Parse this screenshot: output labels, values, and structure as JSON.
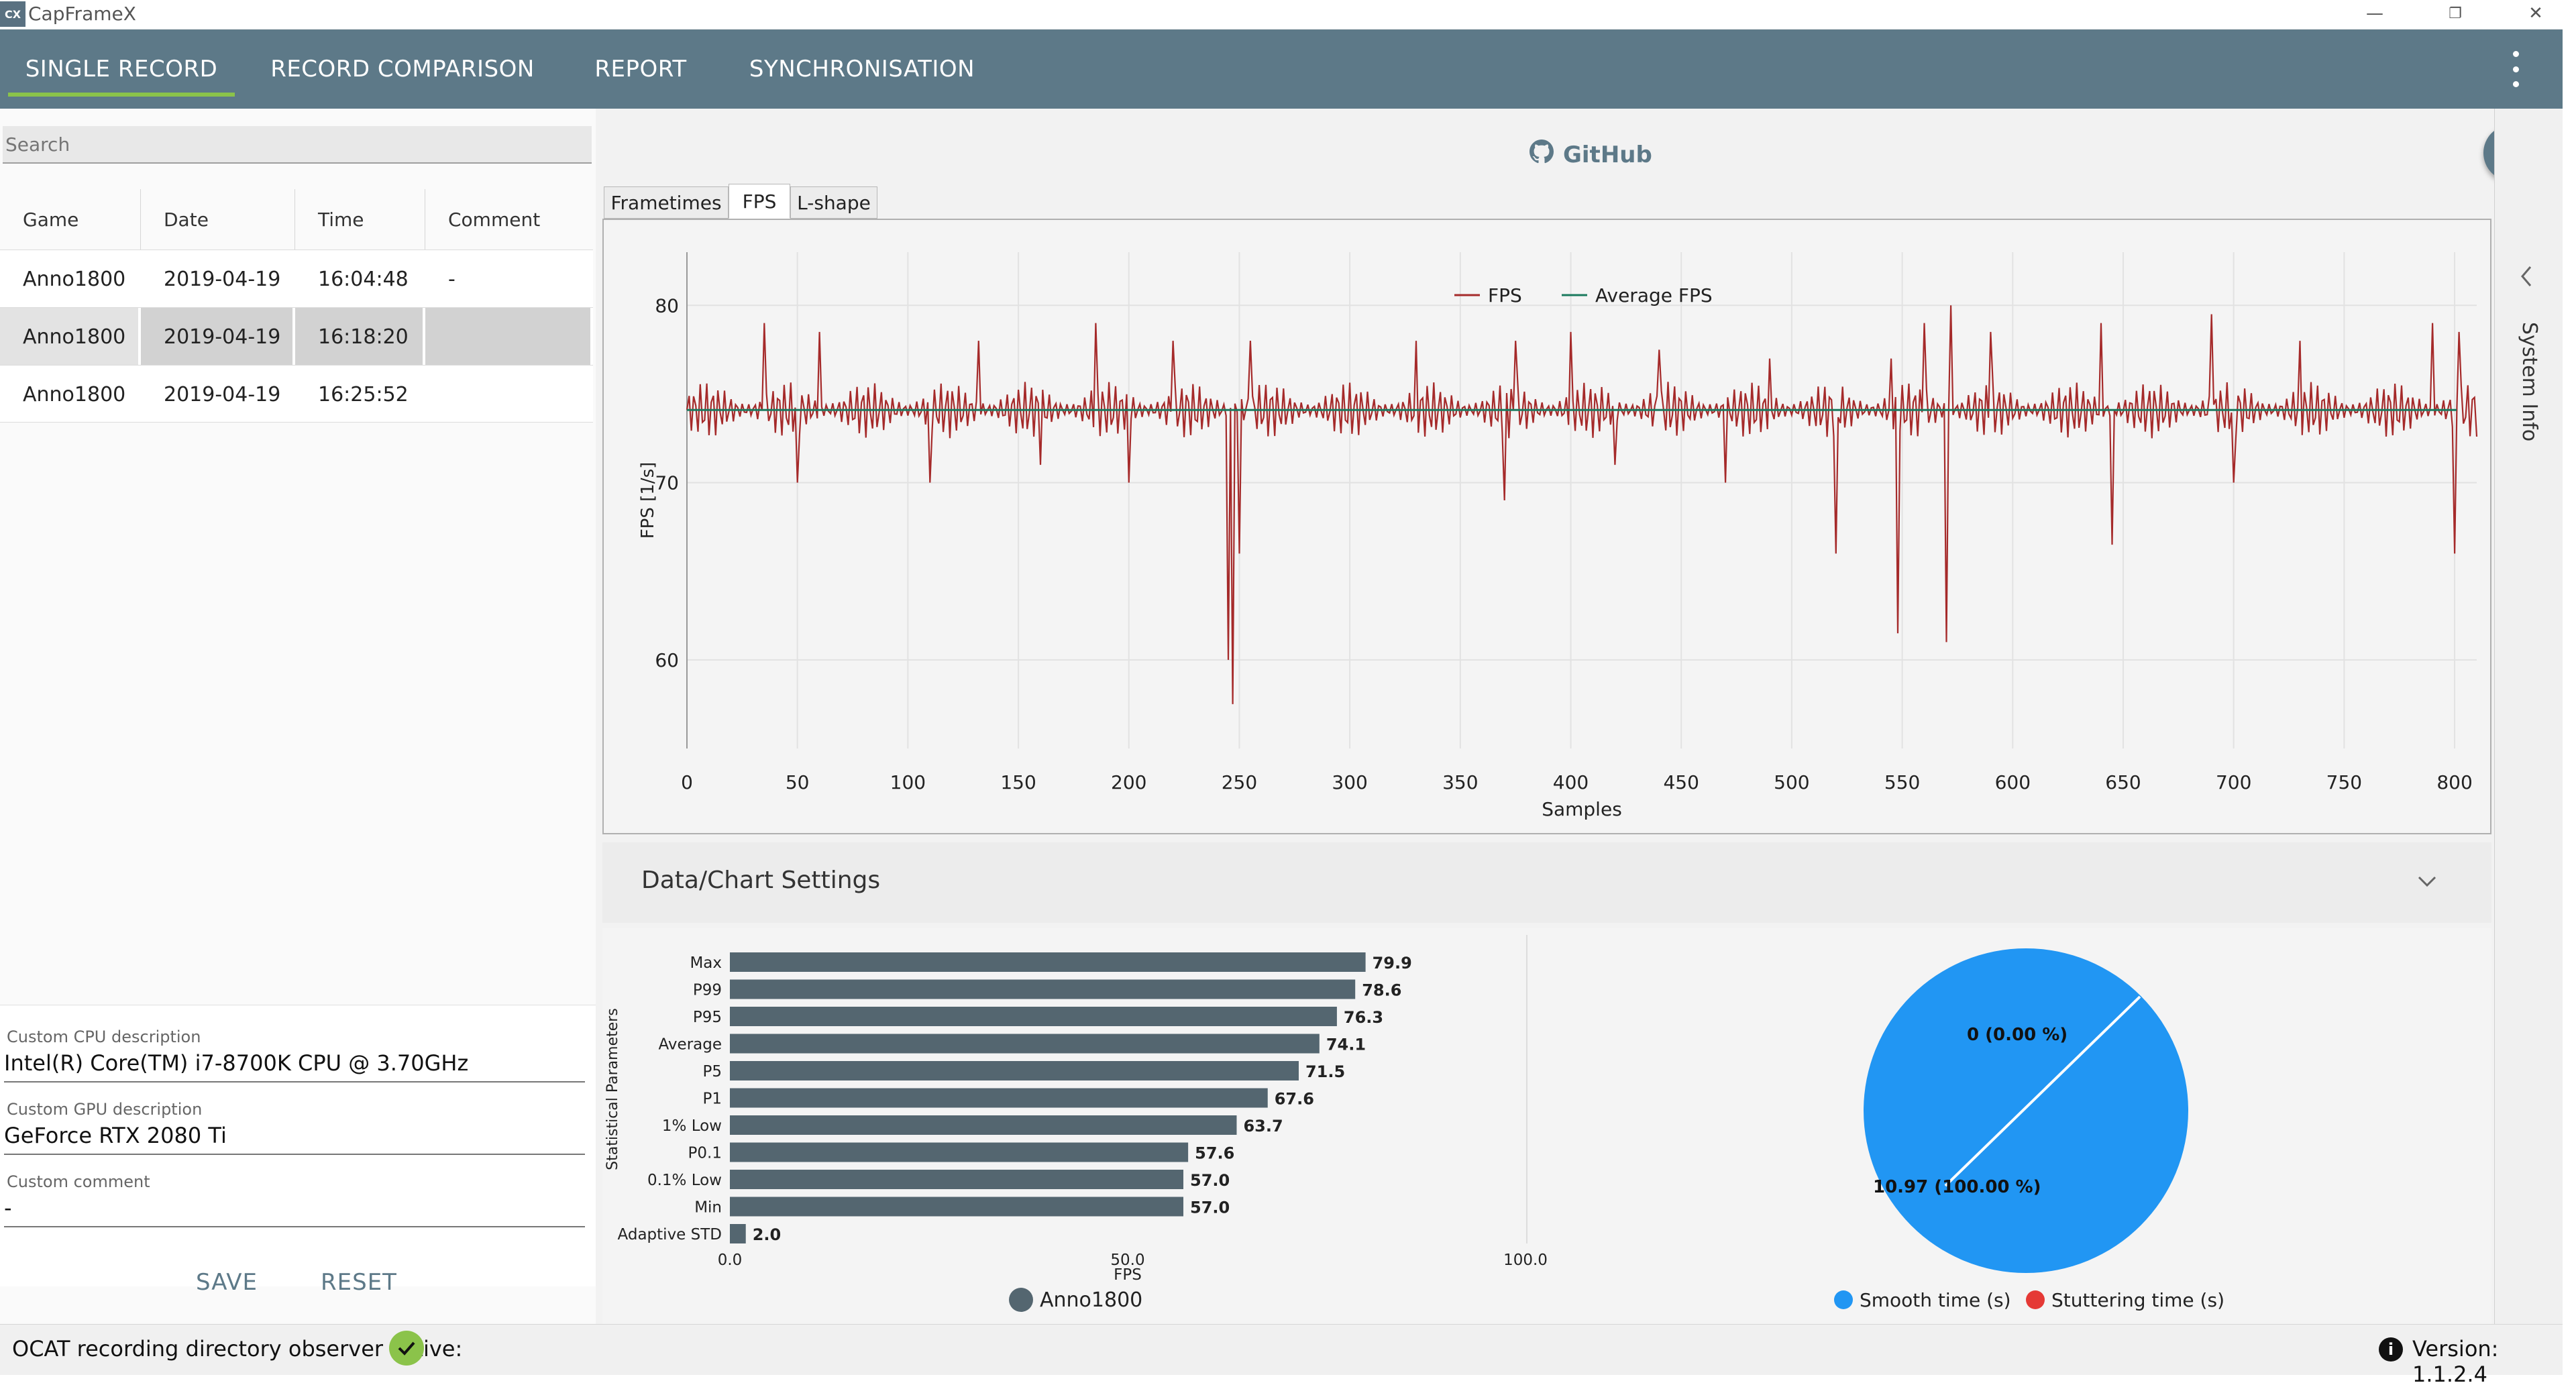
{
  "window": {
    "app_icon_text": "CX",
    "title": "CapFrameX",
    "minimize": "—",
    "restore": "❐",
    "close": "✕"
  },
  "nav": {
    "tabs": [
      {
        "label": "SINGLE RECORD",
        "active": true
      },
      {
        "label": "RECORD COMPARISON"
      },
      {
        "label": "REPORT"
      },
      {
        "label": "SYNCHRONISATION"
      }
    ],
    "accent": "#8bc34a",
    "bar_color": "#5d7988"
  },
  "search": {
    "placeholder": "Search",
    "value": ""
  },
  "records": {
    "headers": [
      "Game",
      "Date",
      "Time",
      "Comment"
    ],
    "rows": [
      [
        "Anno1800",
        "2019-04-19",
        "16:04:48",
        "-"
      ],
      [
        "Anno1800",
        "2019-04-19",
        "16:18:20",
        ""
      ],
      [
        "Anno1800",
        "2019-04-19",
        "16:25:52",
        ""
      ]
    ],
    "selected_row": 1
  },
  "descriptions": {
    "cpu_label": "Custom CPU description",
    "cpu_value": "Intel(R) Core(TM) i7-8700K CPU @ 3.70GHz",
    "gpu_label": "Custom GPU description",
    "gpu_value": "GeForce RTX 2080 Ti",
    "comment_label": "Custom comment",
    "comment_value": "-",
    "save": "SAVE",
    "reset": "RESET"
  },
  "github": {
    "label": "GitHub"
  },
  "chart_tabs": [
    {
      "label": "Frametimes"
    },
    {
      "label": "FPS",
      "active": true
    },
    {
      "label": "L-shape"
    }
  ],
  "settings": {
    "label": "Data/Chart Settings"
  },
  "side_panel": {
    "label": "System Info"
  },
  "status": {
    "observer_text": "OCAT recording directory observer active:",
    "version": "Version:  1.1.2.4"
  },
  "chart_data": [
    {
      "type": "line",
      "xlabel": "Samples",
      "ylabel": "FPS [1/s]",
      "xlim": [
        0,
        810
      ],
      "ylim": [
        55,
        83
      ],
      "x_ticks": [
        0,
        50,
        100,
        150,
        200,
        250,
        300,
        350,
        400,
        450,
        500,
        550,
        600,
        650,
        700,
        750,
        800
      ],
      "y_ticks": [
        60,
        70,
        80
      ],
      "grid": true,
      "legend_position": "top-center",
      "series": [
        {
          "name": "FPS",
          "color": "#a52a2a",
          "base": 74.1,
          "amplitude": 1.6,
          "spikes": [
            [
              35,
              79
            ],
            [
              50,
              70
            ],
            [
              60,
              78.5
            ],
            [
              110,
              70
            ],
            [
              132,
              78
            ],
            [
              160,
              71
            ],
            [
              185,
              79
            ],
            [
              200,
              70
            ],
            [
              220,
              78
            ],
            [
              245,
              60
            ],
            [
              247,
              57.5
            ],
            [
              250,
              66
            ],
            [
              255,
              78
            ],
            [
              330,
              78
            ],
            [
              370,
              69
            ],
            [
              375,
              78
            ],
            [
              400,
              78.5
            ],
            [
              420,
              71
            ],
            [
              440,
              77.5
            ],
            [
              470,
              70
            ],
            [
              490,
              77
            ],
            [
              520,
              66
            ],
            [
              545,
              77
            ],
            [
              548,
              61.5
            ],
            [
              560,
              79
            ],
            [
              570,
              61
            ],
            [
              572,
              80
            ],
            [
              590,
              78.5
            ],
            [
              640,
              79
            ],
            [
              645,
              66.5
            ],
            [
              690,
              79.5
            ],
            [
              700,
              70
            ],
            [
              730,
              78
            ],
            [
              790,
              79
            ],
            [
              800,
              66
            ],
            [
              802,
              78.5
            ]
          ]
        },
        {
          "name": "Average FPS",
          "color": "#1a7a5e",
          "value": 74.1
        }
      ]
    },
    {
      "type": "bar",
      "orientation": "horizontal",
      "ylabel": "Statistical Parameters",
      "xlabel": "FPS",
      "xlim": [
        0,
        100
      ],
      "x_ticks": [
        "0.0",
        "50.0",
        "100.0"
      ],
      "categories": [
        "Max",
        "P99",
        "P95",
        "Average",
        "P5",
        "P1",
        "1% Low",
        "P0.1",
        "0.1% Low",
        "Min",
        "Adaptive STD"
      ],
      "values": [
        79.9,
        78.6,
        76.3,
        74.1,
        71.5,
        67.6,
        63.7,
        57.6,
        57.0,
        57.0,
        2.0
      ],
      "labels": [
        "79.9",
        "78.6",
        "76.3",
        "74.1",
        "71.5",
        "67.6",
        "63.7",
        "57.6",
        "57.0",
        "57.0",
        "2.0"
      ],
      "series": [
        {
          "name": "Anno1800",
          "color": "#546670"
        }
      ]
    },
    {
      "type": "pie",
      "slices": [
        {
          "name": "Smooth time (s)",
          "value": 10.97,
          "label": "10.97 (100.00 %)",
          "color": "#2196f3"
        },
        {
          "name": "Stuttering time (s)",
          "value": 0,
          "label": "0 (0.00 %)",
          "color": "#e53935"
        }
      ]
    }
  ]
}
